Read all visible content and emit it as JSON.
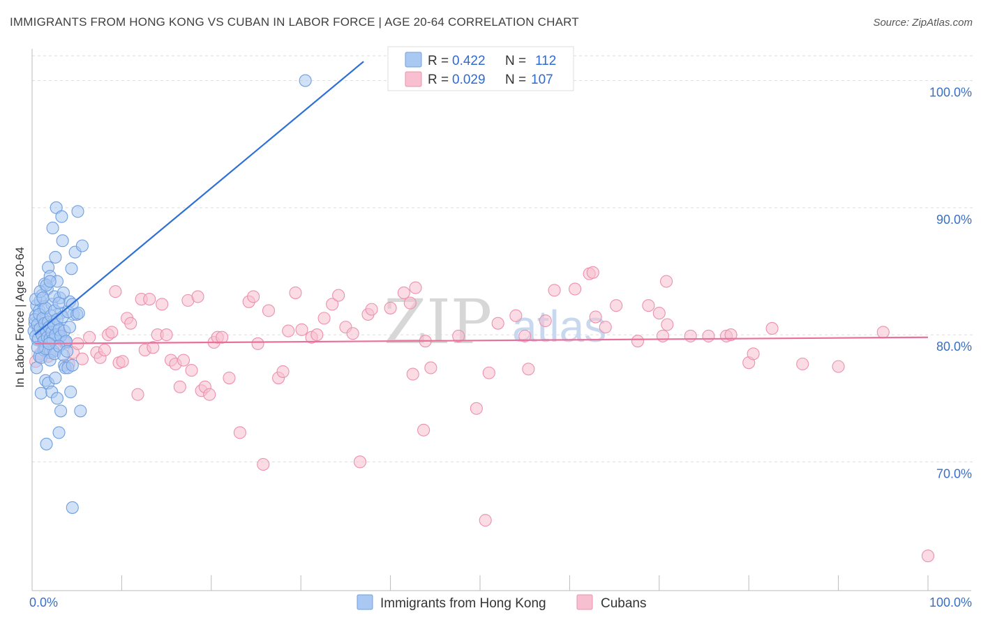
{
  "title": "IMMIGRANTS FROM HONG KONG VS CUBAN IN LABOR FORCE | AGE 20-64 CORRELATION CHART",
  "source": "Source: ZipAtlas.com",
  "watermark": {
    "zip": "ZIP",
    "atlas": "atlas"
  },
  "colors": {
    "blue_fill": "#a9c8f2",
    "blue_stroke": "#6f9fe0",
    "blue_line": "#2e6fd6",
    "pink_fill": "#f7bfd0",
    "pink_stroke": "#ec90ae",
    "pink_line": "#e8709a",
    "grid": "#dddddd",
    "axis": "#bbbbbb"
  },
  "legend": {
    "series": [
      {
        "r_label": "R =",
        "r_value": "0.422",
        "n_label": "N =",
        "n_value": "112"
      },
      {
        "r_label": "R =",
        "r_value": "0.029",
        "n_label": "N =",
        "n_value": "107"
      }
    ]
  },
  "chart_data": {
    "type": "scatter",
    "title": "IMMIGRANTS FROM HONG KONG VS CUBAN IN LABOR FORCE | AGE 20-64 CORRELATION CHART",
    "xlabel": "",
    "ylabel": "In Labor Force | Age 20-64",
    "xlim": [
      0,
      100
    ],
    "ylim": [
      60.8,
      102.5
    ],
    "x_tick_labels": [
      "0.0%",
      "100.0%"
    ],
    "y_ticks": [
      70,
      80,
      90,
      100
    ],
    "y_tick_labels": [
      "70.0%",
      "80.0%",
      "90.0%",
      "100.0%"
    ],
    "grid": true,
    "legend_position": "top-center",
    "series": [
      {
        "name": "Immigrants from Hong Kong",
        "r": 0.422,
        "n": 112,
        "trend": {
          "x0": 0.3,
          "y0": 80.0,
          "x1": 37.0,
          "y1": 101.5
        },
        "points": [
          [
            0.3,
            80.9
          ],
          [
            0.4,
            81.5
          ],
          [
            0.5,
            82.3
          ],
          [
            0.6,
            79.6
          ],
          [
            0.7,
            80.4
          ],
          [
            0.8,
            81.9
          ],
          [
            0.9,
            82.7
          ],
          [
            1.0,
            80.2
          ],
          [
            1.1,
            83.1
          ],
          [
            1.2,
            79.8
          ],
          [
            1.3,
            82.0
          ],
          [
            1.4,
            84.0
          ],
          [
            1.5,
            81.3
          ],
          [
            1.6,
            80.7
          ],
          [
            1.7,
            83.6
          ],
          [
            1.8,
            85.3
          ],
          [
            1.9,
            79.4
          ],
          [
            2.0,
            84.6
          ],
          [
            2.1,
            80.1
          ],
          [
            2.2,
            82.4
          ],
          [
            2.3,
            88.4
          ],
          [
            2.4,
            81.1
          ],
          [
            2.5,
            80.0
          ],
          [
            2.6,
            86.1
          ],
          [
            2.7,
            90.0
          ],
          [
            2.8,
            84.2
          ],
          [
            2.9,
            80.6
          ],
          [
            3.0,
            79.9
          ],
          [
            3.1,
            82.9
          ],
          [
            3.2,
            81.7
          ],
          [
            3.3,
            89.3
          ],
          [
            3.4,
            87.4
          ],
          [
            3.6,
            77.6
          ],
          [
            3.7,
            77.4
          ],
          [
            3.8,
            79.4
          ],
          [
            4.2,
            82.6
          ],
          [
            4.4,
            85.2
          ],
          [
            4.6,
            81.6
          ],
          [
            4.8,
            86.5
          ],
          [
            5.1,
            89.7
          ],
          [
            5.6,
            87.0
          ],
          [
            0.5,
            77.4
          ],
          [
            0.8,
            78.3
          ],
          [
            1.0,
            75.4
          ],
          [
            1.3,
            78.8
          ],
          [
            1.5,
            76.4
          ],
          [
            1.6,
            71.4
          ],
          [
            1.8,
            76.2
          ],
          [
            2.0,
            78.6
          ],
          [
            2.2,
            75.5
          ],
          [
            2.4,
            78.7
          ],
          [
            2.6,
            76.6
          ],
          [
            2.8,
            75.0
          ],
          [
            3.0,
            72.3
          ],
          [
            3.2,
            74.0
          ],
          [
            4.0,
            77.4
          ],
          [
            4.3,
            75.5
          ],
          [
            4.5,
            77.6
          ],
          [
            5.4,
            74.0
          ],
          [
            4.5,
            66.4
          ],
          [
            0.2,
            80.3
          ],
          [
            0.3,
            81.2
          ],
          [
            0.4,
            79.9
          ],
          [
            0.6,
            80.8
          ],
          [
            0.7,
            79.7
          ],
          [
            0.8,
            81.6
          ],
          [
            0.9,
            80.5
          ],
          [
            1.1,
            80.0
          ],
          [
            1.2,
            81.3
          ],
          [
            1.3,
            79.5
          ],
          [
            1.4,
            80.9
          ],
          [
            1.5,
            82.1
          ],
          [
            1.6,
            80.3
          ],
          [
            1.7,
            79.8
          ],
          [
            1.8,
            81.0
          ],
          [
            1.9,
            80.6
          ],
          [
            2.0,
            79.7
          ],
          [
            2.1,
            81.5
          ],
          [
            2.2,
            80.2
          ],
          [
            2.3,
            79.6
          ],
          [
            2.4,
            80.8
          ],
          [
            2.5,
            81.9
          ],
          [
            2.6,
            80.0
          ],
          [
            2.8,
            81.2
          ],
          [
            3.0,
            80.4
          ],
          [
            3.2,
            79.9
          ],
          [
            3.4,
            81.4
          ],
          [
            3.6,
            80.3
          ],
          [
            3.8,
            79.5
          ],
          [
            4.0,
            81.8
          ],
          [
            4.2,
            80.6
          ],
          [
            4.5,
            82.4
          ],
          [
            5.0,
            81.6
          ],
          [
            5.2,
            81.7
          ],
          [
            0.4,
            82.8
          ],
          [
            0.9,
            83.4
          ],
          [
            1.2,
            82.9
          ],
          [
            1.6,
            83.9
          ],
          [
            2.0,
            84.2
          ],
          [
            2.5,
            83.0
          ],
          [
            3.0,
            82.5
          ],
          [
            3.5,
            83.3
          ],
          [
            1.0,
            78.2
          ],
          [
            1.5,
            78.9
          ],
          [
            2.0,
            78.0
          ],
          [
            2.5,
            78.5
          ],
          [
            3.0,
            79.1
          ],
          [
            3.5,
            78.4
          ],
          [
            0.6,
            79.0
          ],
          [
            1.9,
            79.3
          ],
          [
            3.9,
            78.7
          ],
          [
            30.5,
            100.0
          ]
        ]
      },
      {
        "name": "Cubans",
        "r": 0.029,
        "n": 107,
        "trend": {
          "x0": 0.3,
          "y0": 79.3,
          "x1": 100.0,
          "y1": 79.8
        },
        "points": [
          [
            0.4,
            77.9
          ],
          [
            0.9,
            78.5
          ],
          [
            1.3,
            79.1
          ],
          [
            1.8,
            78.3
          ],
          [
            2.2,
            79.6
          ],
          [
            2.7,
            78.8
          ],
          [
            3.2,
            80.1
          ],
          [
            3.6,
            79.4
          ],
          [
            4.1,
            77.7
          ],
          [
            4.6,
            78.6
          ],
          [
            5.1,
            79.3
          ],
          [
            5.6,
            78.1
          ],
          [
            6.4,
            79.8
          ],
          [
            7.2,
            78.6
          ],
          [
            7.6,
            78.2
          ],
          [
            8.1,
            78.8
          ],
          [
            8.5,
            80.0
          ],
          [
            8.9,
            80.2
          ],
          [
            9.3,
            83.4
          ],
          [
            9.7,
            77.8
          ],
          [
            10.1,
            77.9
          ],
          [
            10.6,
            81.3
          ],
          [
            11.0,
            80.9
          ],
          [
            11.8,
            75.3
          ],
          [
            12.2,
            82.8
          ],
          [
            12.6,
            78.8
          ],
          [
            13.1,
            82.8
          ],
          [
            13.5,
            79.0
          ],
          [
            14.0,
            80.0
          ],
          [
            14.5,
            82.4
          ],
          [
            15.0,
            80.0
          ],
          [
            15.5,
            78.0
          ],
          [
            16.0,
            77.7
          ],
          [
            16.5,
            75.9
          ],
          [
            16.9,
            78.0
          ],
          [
            17.4,
            82.7
          ],
          [
            17.8,
            77.2
          ],
          [
            18.5,
            83.0
          ],
          [
            18.9,
            75.6
          ],
          [
            19.3,
            75.9
          ],
          [
            19.8,
            75.3
          ],
          [
            20.3,
            79.4
          ],
          [
            20.7,
            79.8
          ],
          [
            21.2,
            79.8
          ],
          [
            22.0,
            76.6
          ],
          [
            23.2,
            72.3
          ],
          [
            24.2,
            82.6
          ],
          [
            24.7,
            83.0
          ],
          [
            25.8,
            69.8
          ],
          [
            25.2,
            79.3
          ],
          [
            26.4,
            81.9
          ],
          [
            27.5,
            76.6
          ],
          [
            28.0,
            77.1
          ],
          [
            28.6,
            80.3
          ],
          [
            29.4,
            83.3
          ],
          [
            30.1,
            80.4
          ],
          [
            31.2,
            79.8
          ],
          [
            31.8,
            80.0
          ],
          [
            32.6,
            81.3
          ],
          [
            33.5,
            82.4
          ],
          [
            34.2,
            83.1
          ],
          [
            35.0,
            80.6
          ],
          [
            35.8,
            80.1
          ],
          [
            36.6,
            70.0
          ],
          [
            37.5,
            81.6
          ],
          [
            37.9,
            82.0
          ],
          [
            40.0,
            82.1
          ],
          [
            41.5,
            83.3
          ],
          [
            42.2,
            82.5
          ],
          [
            42.5,
            76.9
          ],
          [
            42.8,
            83.7
          ],
          [
            43.7,
            72.5
          ],
          [
            43.9,
            79.5
          ],
          [
            44.5,
            77.4
          ],
          [
            47.6,
            79.9
          ],
          [
            49.6,
            74.2
          ],
          [
            50.6,
            65.4
          ],
          [
            51.0,
            77.0
          ],
          [
            52.0,
            80.9
          ],
          [
            54.0,
            81.5
          ],
          [
            55.0,
            79.9
          ],
          [
            55.4,
            77.3
          ],
          [
            57.3,
            81.1
          ],
          [
            58.3,
            83.5
          ],
          [
            60.6,
            83.6
          ],
          [
            62.2,
            84.8
          ],
          [
            62.6,
            84.9
          ],
          [
            62.9,
            81.4
          ],
          [
            64.0,
            80.6
          ],
          [
            65.2,
            82.3
          ],
          [
            67.6,
            79.5
          ],
          [
            68.8,
            82.3
          ],
          [
            70.4,
            79.9
          ],
          [
            70.8,
            84.2
          ],
          [
            70.0,
            81.7
          ],
          [
            70.9,
            80.8
          ],
          [
            73.5,
            79.9
          ],
          [
            75.5,
            79.9
          ],
          [
            80.0,
            77.8
          ],
          [
            80.5,
            78.5
          ],
          [
            82.6,
            80.5
          ],
          [
            77.5,
            79.9
          ],
          [
            78.0,
            80.0
          ],
          [
            86.0,
            77.7
          ],
          [
            90.0,
            77.5
          ],
          [
            95.0,
            80.2
          ],
          [
            100.0,
            62.6
          ]
        ]
      }
    ]
  }
}
